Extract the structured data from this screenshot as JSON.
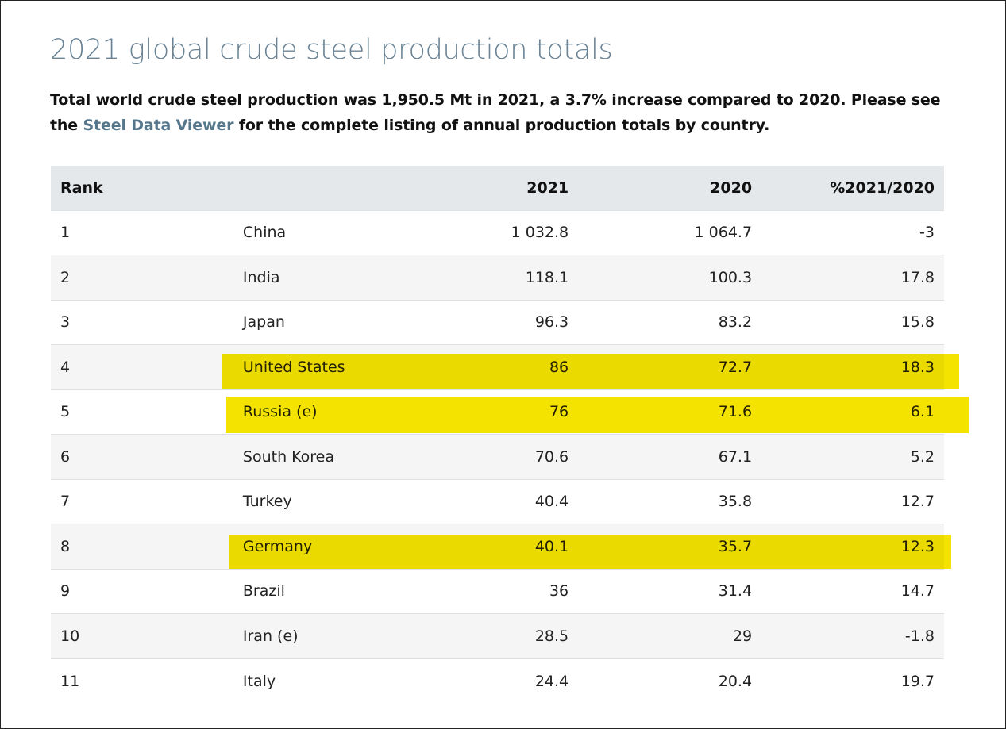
{
  "page": {
    "title": "2021 global crude steel production totals",
    "intro_part1": "Total world crude steel production was 1,950.5 Mt in 2021, a 3.7% increase compared to 2020. Please see the ",
    "intro_link": "Steel Data Viewer",
    "intro_part2": " for the complete listing of annual production totals by country."
  },
  "table": {
    "headers": {
      "rank": "Rank",
      "country": "",
      "y2021": "2021",
      "y2020": "2020",
      "pct": "%2021/2020"
    },
    "rows": [
      {
        "rank": "1",
        "country": "China",
        "y2021": "1 032.8",
        "y2020": "1 064.7",
        "pct": "-3",
        "highlighted": false
      },
      {
        "rank": "2",
        "country": "India",
        "y2021": "118.1",
        "y2020": "100.3",
        "pct": "17.8",
        "highlighted": false
      },
      {
        "rank": "3",
        "country": "Japan",
        "y2021": "96.3",
        "y2020": "83.2",
        "pct": "15.8",
        "highlighted": false
      },
      {
        "rank": "4",
        "country": "United States",
        "y2021": "86",
        "y2020": "72.7",
        "pct": "18.3",
        "highlighted": true
      },
      {
        "rank": "5",
        "country": "Russia (e)",
        "y2021": "76",
        "y2020": "71.6",
        "pct": "6.1",
        "highlighted": true
      },
      {
        "rank": "6",
        "country": "South Korea",
        "y2021": "70.6",
        "y2020": "67.1",
        "pct": "5.2",
        "highlighted": false
      },
      {
        "rank": "7",
        "country": "Turkey",
        "y2021": "40.4",
        "y2020": "35.8",
        "pct": "12.7",
        "highlighted": false
      },
      {
        "rank": "8",
        "country": "Germany",
        "y2021": "40.1",
        "y2020": "35.7",
        "pct": "12.3",
        "highlighted": true
      },
      {
        "rank": "9",
        "country": "Brazil",
        "y2021": "36",
        "y2020": "31.4",
        "pct": "14.7",
        "highlighted": false
      },
      {
        "rank": "10",
        "country": "Iran (e)",
        "y2021": "28.5",
        "y2020": "29",
        "pct": "-1.8",
        "highlighted": false
      },
      {
        "rank": "11",
        "country": "Italy",
        "y2021": "24.4",
        "y2020": "20.4",
        "pct": "19.7",
        "highlighted": false
      }
    ]
  },
  "colors": {
    "title": "#6a8395",
    "link": "#55768b",
    "header_bg": "#e4e8eb",
    "stripe_bg": "#f5f5f5",
    "highlight": "#f4e300"
  }
}
